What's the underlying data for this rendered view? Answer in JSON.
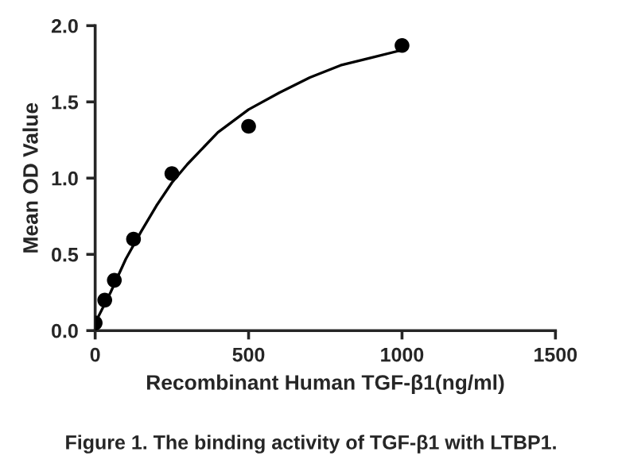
{
  "chart_data": {
    "type": "scatter",
    "xlabel": "Recombinant Human TGF-β1(ng/ml)",
    "ylabel": "Mean OD Value",
    "series": [
      {
        "color": "#000000",
        "marker": "circle",
        "x": [
          0,
          31.25,
          62.5,
          125,
          250,
          500,
          1000
        ],
        "values": [
          0.05,
          0.2,
          0.33,
          0.6,
          1.03,
          1.34,
          1.87
        ]
      },
      {
        "type": "line",
        "color": "#000000",
        "marker": "none",
        "x": [
          0,
          50,
          100,
          150,
          200,
          250,
          300,
          400,
          500,
          600,
          700,
          800,
          900,
          1000
        ],
        "values": [
          0.05,
          0.25,
          0.47,
          0.65,
          0.82,
          0.97,
          1.09,
          1.3,
          1.45,
          1.56,
          1.66,
          1.74,
          1.79,
          1.84
        ]
      }
    ],
    "xlim": [
      0,
      1500
    ],
    "xticks": [
      0,
      500,
      1000,
      1500
    ],
    "ylim": [
      0,
      2.0
    ],
    "yticks": [
      {
        "value": 0,
        "label": "0.0"
      },
      {
        "value": 0.5,
        "label": "0.5"
      },
      {
        "value": 1.0,
        "label": "1.0"
      },
      {
        "value": 1.5,
        "label": "1.5"
      },
      {
        "value": 2.0,
        "label": "2.0"
      }
    ],
    "grid": false,
    "legend": false,
    "annotations": [
      "Figure 1. The binding activity of TGF-β1 with LTBP1."
    ]
  }
}
